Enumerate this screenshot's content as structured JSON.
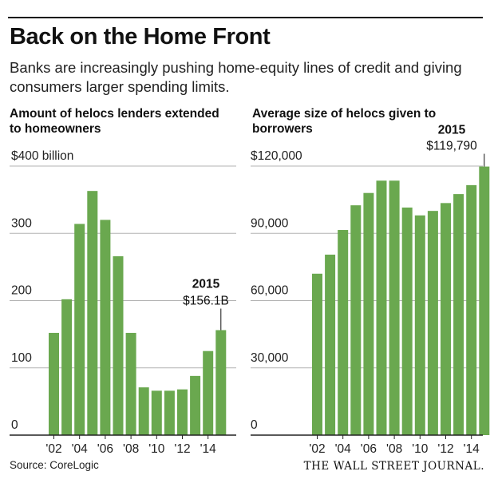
{
  "header": {
    "title": "Back on the Home Front",
    "subtitle": "Banks are increasingly pushing home-equity lines of credit and giving consumers larger spending limits."
  },
  "footer": {
    "source": "Source: CoreLogic",
    "publisher": "THE WALL STREET JOURNAL."
  },
  "colors": {
    "bar": "#6aa84f",
    "grid": "#b3b3b3",
    "axis": "#222222"
  },
  "chart_data": [
    {
      "type": "bar",
      "title": "Amount of helocs lenders extended to homeowners",
      "xlabel": "",
      "ylabel": "",
      "categories": [
        "2002",
        "2003",
        "2004",
        "2005",
        "2006",
        "2007",
        "2008",
        "2009",
        "2010",
        "2011",
        "2012",
        "2013",
        "2014",
        "2015"
      ],
      "values": [
        152,
        202,
        314,
        363,
        320,
        266,
        152,
        71,
        66,
        66,
        68,
        88,
        125,
        156.1
      ],
      "ylim": [
        0,
        400
      ],
      "y_ticks": [
        0,
        100,
        200,
        300,
        400
      ],
      "y_tick_labels": [
        "0",
        "100",
        "200",
        "300",
        "$400 billion"
      ],
      "x_tick_labels": [
        "'02",
        "'04",
        "'06",
        "'08",
        "'10",
        "'12",
        "'14"
      ],
      "annotation": {
        "year": "2015",
        "value_label": "$156.1B"
      },
      "grid": true
    },
    {
      "type": "bar",
      "title": "Average size of helocs given to borrowers",
      "xlabel": "",
      "ylabel": "",
      "categories": [
        "2002",
        "2003",
        "2004",
        "2005",
        "2006",
        "2007",
        "2008",
        "2009",
        "2010",
        "2011",
        "2012",
        "2013",
        "2014",
        "2015"
      ],
      "values": [
        72000,
        80500,
        91500,
        102500,
        108000,
        113500,
        113500,
        101500,
        98000,
        100000,
        103500,
        107500,
        111500,
        119790
      ],
      "ylim": [
        0,
        120000
      ],
      "y_ticks": [
        0,
        30000,
        60000,
        90000,
        120000
      ],
      "y_tick_labels": [
        "0",
        "30,000",
        "60,000",
        "90,000",
        "$120,000"
      ],
      "x_tick_labels": [
        "'02",
        "'04",
        "'06",
        "'08",
        "'10",
        "'12",
        "'14"
      ],
      "annotation": {
        "year": "2015",
        "value_label": "$119,790"
      },
      "grid": true
    }
  ]
}
